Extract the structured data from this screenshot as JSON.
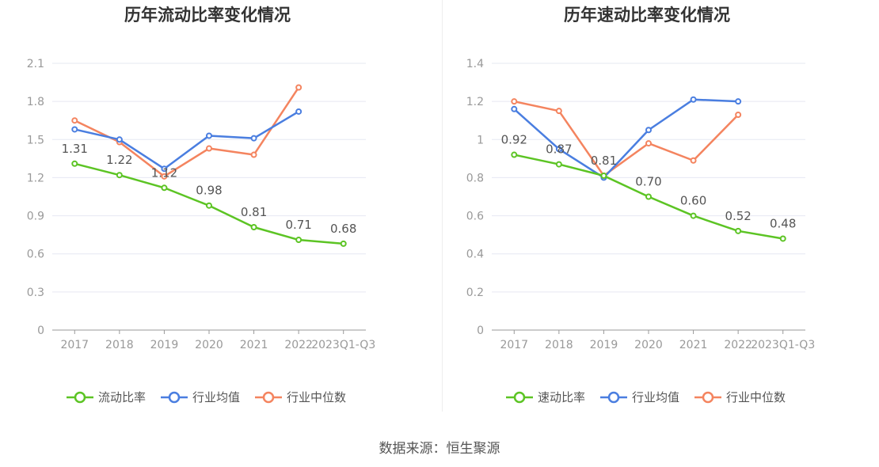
{
  "source_text": "数据来源：恒生聚源",
  "chart_data": [
    {
      "type": "line",
      "title": "历年流动比率变化情况",
      "categories": [
        "2017",
        "2018",
        "2019",
        "2020",
        "2021",
        "2022",
        "2023Q1-Q3"
      ],
      "ylim": [
        0,
        2.1
      ],
      "yticks": [
        "0",
        "0.3",
        "0.6",
        "0.9",
        "1.2",
        "1.5",
        "1.8",
        "2.1"
      ],
      "grid": true,
      "legend_position": "bottom",
      "series": [
        {
          "name": "流动比率",
          "color": "#5cc424",
          "values": [
            1.31,
            1.22,
            1.12,
            0.98,
            0.81,
            0.71,
            0.68
          ],
          "labels": [
            "1.31",
            "1.22",
            "1.12",
            "0.98",
            "0.81",
            "0.71",
            "0.68"
          ]
        },
        {
          "name": "行业均值",
          "color": "#4a7ee0",
          "values": [
            1.58,
            1.5,
            1.27,
            1.53,
            1.51,
            1.72,
            null
          ]
        },
        {
          "name": "行业中位数",
          "color": "#f4845f",
          "values": [
            1.65,
            1.48,
            1.21,
            1.43,
            1.38,
            1.91,
            null
          ]
        }
      ]
    },
    {
      "type": "line",
      "title": "历年速动比率变化情况",
      "categories": [
        "2017",
        "2018",
        "2019",
        "2020",
        "2021",
        "2022",
        "2023Q1-Q3"
      ],
      "ylim": [
        0,
        1.4
      ],
      "yticks": [
        "0",
        "0.2",
        "0.4",
        "0.6",
        "0.8",
        "1",
        "1.2",
        "1.4"
      ],
      "grid": true,
      "legend_position": "bottom",
      "series": [
        {
          "name": "速动比率",
          "color": "#5cc424",
          "values": [
            0.92,
            0.87,
            0.81,
            0.7,
            0.6,
            0.52,
            0.48
          ],
          "labels": [
            "0.92",
            "0.87",
            "0.81",
            "0.70",
            "0.60",
            "0.52",
            "0.48"
          ]
        },
        {
          "name": "行业均值",
          "color": "#4a7ee0",
          "values": [
            1.16,
            0.95,
            0.8,
            1.05,
            1.21,
            1.2,
            null
          ]
        },
        {
          "name": "行业中位数",
          "color": "#f4845f",
          "values": [
            1.2,
            1.15,
            0.81,
            0.98,
            0.89,
            1.13,
            null
          ]
        }
      ]
    }
  ]
}
